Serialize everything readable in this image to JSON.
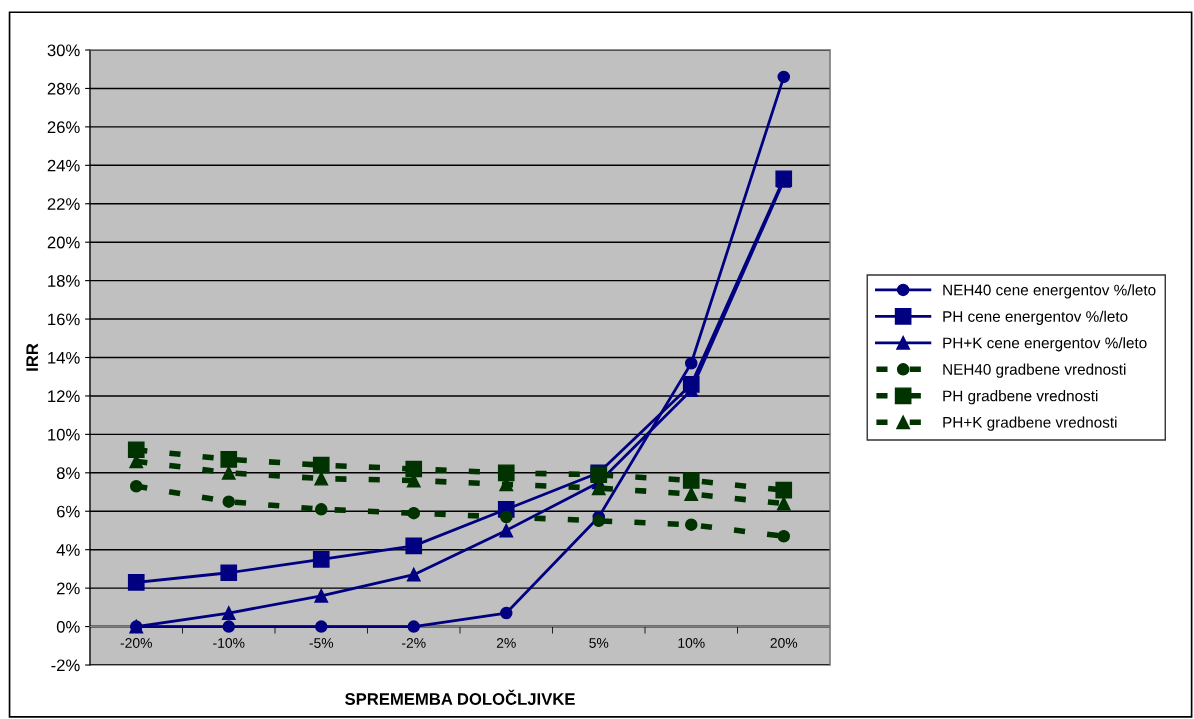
{
  "chart_data": {
    "type": "line",
    "xlabel": "SPREMEMBA DOLOČLJIVKE",
    "ylabel": "IRR",
    "categories": [
      "-20%",
      "-10%",
      "-5%",
      "-2%",
      "2%",
      "5%",
      "10%",
      "20%"
    ],
    "series": [
      {
        "name": "NEH40 cene energentov %/leto",
        "color": "#000080",
        "marker": "circle",
        "line_style": "solid",
        "values": [
          0,
          0,
          0,
          0,
          0.7,
          5.7,
          13.7,
          28.6
        ]
      },
      {
        "name": "PH cene energentov %/leto",
        "color": "#000080",
        "marker": "square",
        "line_style": "solid",
        "values": [
          2.3,
          2.8,
          3.5,
          4.2,
          6.1,
          8.0,
          12.6,
          23.3
        ]
      },
      {
        "name": "PH+K cene energentov %/leto",
        "color": "#000080",
        "marker": "triangle",
        "line_style": "solid",
        "values": [
          0,
          0.7,
          1.6,
          2.7,
          5.0,
          7.5,
          12.3,
          23.2
        ]
      },
      {
        "name": "NEH40 gradbene vrednosti",
        "color": "#003300",
        "marker": "circle",
        "line_style": "dashed",
        "values": [
          7.3,
          6.5,
          6.1,
          5.9,
          5.7,
          5.5,
          5.3,
          4.7
        ]
      },
      {
        "name": "PH gradbene vrednosti",
        "color": "#003300",
        "marker": "square",
        "line_style": "dashed",
        "values": [
          9.2,
          8.7,
          8.4,
          8.2,
          8.0,
          7.9,
          7.6,
          7.1
        ]
      },
      {
        "name": "PH+K gradbene vrednosti",
        "color": "#003300",
        "marker": "triangle",
        "line_style": "dashed",
        "values": [
          8.6,
          8.0,
          7.7,
          7.6,
          7.4,
          7.2,
          6.9,
          6.4
        ]
      }
    ],
    "ylim": [
      -2,
      30
    ],
    "yticks": [
      {
        "value": -2,
        "label": "-2%"
      },
      {
        "value": 0,
        "label": "0%"
      },
      {
        "value": 2,
        "label": "2%"
      },
      {
        "value": 4,
        "label": "4%"
      },
      {
        "value": 6,
        "label": "6%"
      },
      {
        "value": 8,
        "label": "8%"
      },
      {
        "value": 10,
        "label": "10%"
      },
      {
        "value": 12,
        "label": "12%"
      },
      {
        "value": 14,
        "label": "14%"
      },
      {
        "value": 16,
        "label": "16%"
      },
      {
        "value": 18,
        "label": "18%"
      },
      {
        "value": 20,
        "label": "20%"
      },
      {
        "value": 22,
        "label": "22%"
      },
      {
        "value": 24,
        "label": "24%"
      },
      {
        "value": 26,
        "label": "26%"
      },
      {
        "value": 28,
        "label": "28%"
      },
      {
        "value": 30,
        "label": "30%"
      }
    ],
    "grid": "y",
    "legend": "right"
  }
}
